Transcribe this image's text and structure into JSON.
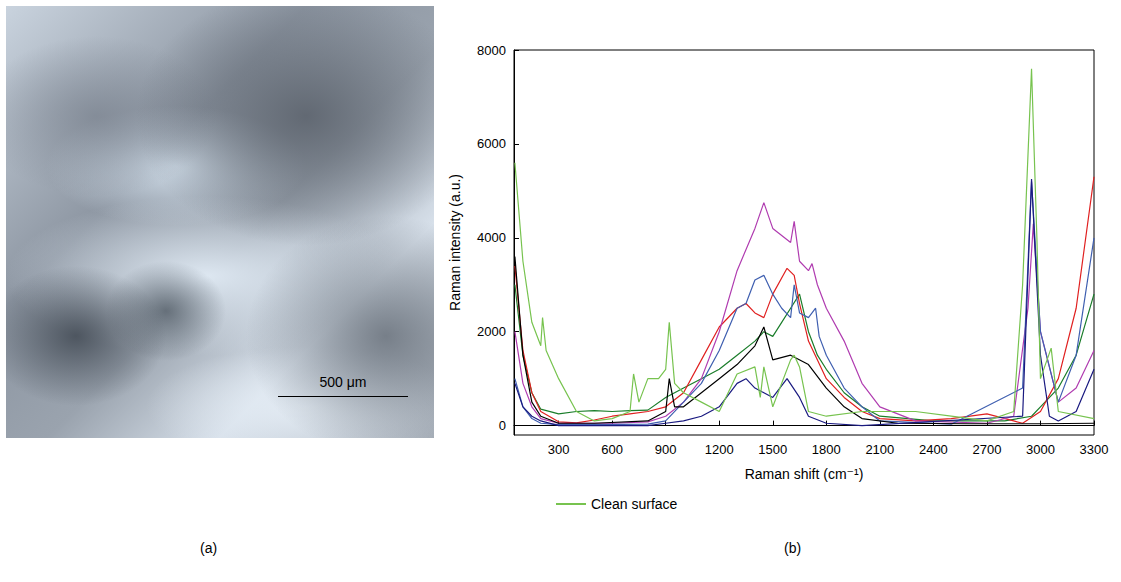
{
  "figure": {
    "panels": [
      {
        "label": "(a)",
        "scale_bar": "500 μm"
      },
      {
        "label": "(b)"
      }
    ]
  },
  "chart_data": {
    "type": "line",
    "x_label": "Raman shift (cm⁻¹)",
    "y_label": "Raman intensity (a.u.)",
    "xlim": [
      50,
      3300
    ],
    "xticks": [
      300,
      600,
      900,
      1200,
      1500,
      1800,
      2100,
      2400,
      2700,
      3000,
      3300
    ],
    "ylim": [
      -200,
      8000
    ],
    "yticks": [
      0,
      2000,
      4000,
      6000,
      8000
    ],
    "grid": false,
    "legend": "bottom",
    "series": [
      {
        "color": "#1a7d2a",
        "x": [
          55,
          100,
          150,
          200,
          300,
          400,
          500,
          600,
          700,
          800,
          900,
          1000,
          1100,
          1200,
          1300,
          1400,
          1450,
          1500,
          1550,
          1600,
          1650,
          1700,
          1750,
          1800,
          1900,
          2000,
          2100,
          2400,
          2800,
          2950,
          3000,
          3100,
          3200,
          3300
        ],
        "values": [
          3000,
          1500,
          700,
          350,
          250,
          300,
          320,
          300,
          320,
          330,
          600,
          800,
          1000,
          1200,
          1500,
          1800,
          2000,
          1900,
          2200,
          2500,
          2800,
          2000,
          1500,
          1200,
          700,
          400,
          200,
          100,
          100,
          200,
          400,
          800,
          1500,
          2800
        ]
      },
      {
        "color": "#e02020",
        "x": [
          55,
          100,
          150,
          200,
          300,
          400,
          500,
          600,
          700,
          800,
          900,
          1000,
          1100,
          1200,
          1300,
          1350,
          1400,
          1450,
          1500,
          1580,
          1620,
          1650,
          1700,
          1800,
          1900,
          2000,
          2100,
          2300,
          2500,
          2700,
          2850,
          2900,
          3000,
          3100,
          3200,
          3300
        ],
        "values": [
          3400,
          1600,
          700,
          300,
          80,
          60,
          120,
          200,
          250,
          300,
          400,
          700,
          1400,
          2100,
          2500,
          2600,
          2400,
          2300,
          2800,
          3350,
          3200,
          2600,
          1800,
          1000,
          600,
          300,
          150,
          100,
          150,
          250,
          100,
          50,
          300,
          1000,
          2500,
          5300
        ]
      },
      {
        "color": "#b03cb0",
        "x": [
          55,
          100,
          150,
          200,
          300,
          400,
          600,
          800,
          900,
          1000,
          1100,
          1200,
          1300,
          1400,
          1450,
          1500,
          1600,
          1620,
          1650,
          1700,
          1720,
          1750,
          1800,
          1900,
          2000,
          2100,
          2300,
          2700,
          2850,
          2930,
          2960,
          3000,
          3100,
          3200,
          3300
        ],
        "values": [
          2000,
          900,
          400,
          150,
          50,
          50,
          50,
          80,
          200,
          500,
          1000,
          2000,
          3300,
          4200,
          4750,
          4200,
          3900,
          4350,
          3500,
          3300,
          3450,
          3000,
          2500,
          1800,
          900,
          400,
          100,
          50,
          200,
          2500,
          4300,
          2000,
          500,
          800,
          1600
        ]
      },
      {
        "color": "#3f5fb0",
        "x": [
          55,
          100,
          150,
          200,
          300,
          500,
          800,
          900,
          1000,
          1100,
          1200,
          1300,
          1350,
          1400,
          1450,
          1500,
          1550,
          1600,
          1620,
          1650,
          1700,
          1740,
          1760,
          1800,
          1900,
          2000,
          2100,
          2500,
          2900,
          2950,
          3000,
          3100,
          3200,
          3300
        ],
        "values": [
          1000,
          400,
          150,
          50,
          20,
          20,
          30,
          100,
          500,
          900,
          1600,
          2500,
          2600,
          3100,
          3200,
          2800,
          2500,
          2300,
          3000,
          2400,
          2300,
          2500,
          1900,
          1500,
          800,
          400,
          100,
          30,
          800,
          5200,
          2000,
          500,
          1500,
          4000
        ]
      },
      {
        "color": "#000000",
        "x": [
          55,
          100,
          150,
          200,
          300,
          500,
          800,
          900,
          920,
          950,
          1000,
          1100,
          1200,
          1300,
          1400,
          1450,
          1500,
          1600,
          1700,
          1800,
          1900,
          2000,
          2200,
          2600,
          3000,
          3300
        ],
        "values": [
          3600,
          1500,
          500,
          200,
          50,
          50,
          100,
          300,
          1000,
          400,
          400,
          700,
          1000,
          1300,
          1700,
          2100,
          1400,
          1500,
          1300,
          800,
          400,
          150,
          50,
          40,
          40,
          50
        ]
      },
      {
        "color": "#1a1a80",
        "x": [
          55,
          100,
          150,
          200,
          300,
          800,
          900,
          1000,
          1100,
          1200,
          1300,
          1350,
          1400,
          1450,
          1500,
          1580,
          1650,
          1700,
          1800,
          2000,
          2900,
          2950,
          3000,
          3050,
          3100,
          3200,
          3300
        ],
        "values": [
          900,
          400,
          200,
          100,
          0,
          0,
          50,
          100,
          200,
          400,
          900,
          1000,
          800,
          700,
          600,
          1000,
          600,
          200,
          50,
          0,
          200,
          5250,
          1500,
          200,
          100,
          300,
          1200
        ]
      },
      {
        "name": "Clean surface",
        "color": "#77c34f",
        "x": [
          55,
          100,
          150,
          200,
          210,
          230,
          300,
          400,
          500,
          600,
          700,
          720,
          750,
          800,
          860,
          900,
          920,
          950,
          1000,
          1100,
          1200,
          1300,
          1400,
          1430,
          1450,
          1500,
          1600,
          1620,
          1650,
          1700,
          1800,
          2000,
          2300,
          2500,
          2700,
          2850,
          2900,
          2950,
          2980,
          3000,
          3060,
          3100,
          3300
        ],
        "values": [
          5600,
          3500,
          2200,
          1700,
          2300,
          1600,
          1000,
          300,
          100,
          150,
          300,
          1100,
          500,
          1000,
          1000,
          1200,
          2200,
          900,
          700,
          500,
          300,
          1100,
          1250,
          600,
          1250,
          400,
          1400,
          1500,
          1250,
          300,
          200,
          300,
          300,
          200,
          100,
          300,
          3000,
          7600,
          4000,
          1000,
          1650,
          300,
          150
        ]
      }
    ]
  }
}
